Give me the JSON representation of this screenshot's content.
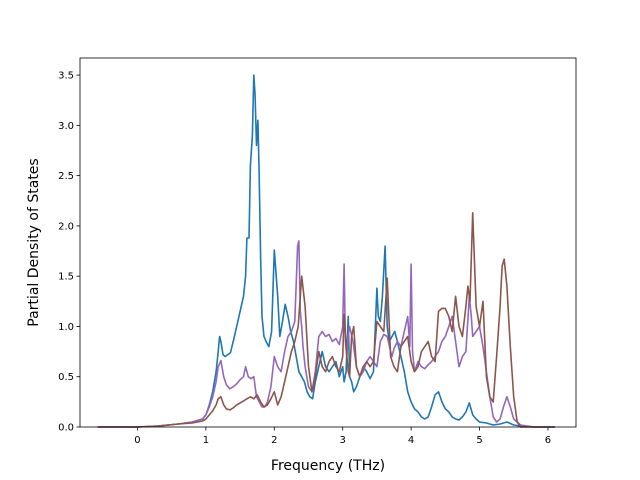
{
  "chart_data": {
    "type": "line",
    "title": "",
    "xlabel": "Frequency (THz)",
    "ylabel": "Partial Density of States",
    "xlim": [
      -0.84,
      6.41
    ],
    "ylim": [
      0,
      3.67
    ],
    "xticks": [
      0,
      1,
      2,
      3,
      4,
      5,
      6
    ],
    "xtick_labels": [
      "0",
      "1",
      "2",
      "3",
      "4",
      "5",
      "6"
    ],
    "yticks": [
      0.0,
      0.5,
      1.0,
      1.5,
      2.0,
      2.5,
      3.0,
      3.5
    ],
    "ytick_labels": [
      "0.0",
      "0.5",
      "1.0",
      "1.5",
      "2.0",
      "2.5",
      "3.0",
      "3.5"
    ],
    "grid": false,
    "legend": "none",
    "series": [
      {
        "color": "#1f77b4",
        "x": [
          -0.58,
          0.0,
          0.3,
          0.6,
          0.8,
          0.95,
          1.0,
          1.05,
          1.1,
          1.15,
          1.18,
          1.2,
          1.22,
          1.25,
          1.28,
          1.32,
          1.36,
          1.4,
          1.45,
          1.5,
          1.55,
          1.58,
          1.6,
          1.63,
          1.65,
          1.68,
          1.7,
          1.72,
          1.74,
          1.76,
          1.78,
          1.8,
          1.82,
          1.85,
          1.88,
          1.92,
          1.96,
          2.0,
          2.05,
          2.08,
          2.12,
          2.16,
          2.2,
          2.24,
          2.28,
          2.32,
          2.36,
          2.4,
          2.44,
          2.48,
          2.52,
          2.56,
          2.6,
          2.65,
          2.7,
          2.75,
          2.8,
          2.85,
          2.9,
          2.95,
          3.0,
          3.02,
          3.05,
          3.08,
          3.1,
          3.13,
          3.16,
          3.2,
          3.25,
          3.3,
          3.35,
          3.4,
          3.45,
          3.5,
          3.52,
          3.55,
          3.58,
          3.62,
          3.65,
          3.68,
          3.72,
          3.76,
          3.8,
          3.85,
          3.9,
          3.95,
          4.0,
          4.05,
          4.1,
          4.15,
          4.2,
          4.25,
          4.3,
          4.35,
          4.4,
          4.45,
          4.5,
          4.55,
          4.6,
          4.65,
          4.7,
          4.75,
          4.8,
          4.85,
          4.9,
          4.95,
          5.0,
          5.1,
          5.2,
          5.3,
          5.4,
          5.5,
          5.6,
          5.8,
          6.0,
          6.1
        ],
        "values": [
          0.0,
          0.0,
          0.01,
          0.03,
          0.05,
          0.08,
          0.12,
          0.22,
          0.35,
          0.55,
          0.75,
          0.9,
          0.85,
          0.72,
          0.7,
          0.72,
          0.74,
          0.85,
          1.0,
          1.15,
          1.3,
          1.5,
          1.88,
          1.88,
          2.6,
          2.9,
          3.5,
          3.3,
          2.8,
          3.05,
          2.5,
          1.7,
          1.1,
          0.9,
          0.85,
          0.8,
          0.95,
          1.76,
          1.3,
          0.9,
          1.05,
          1.22,
          1.1,
          0.95,
          0.85,
          0.7,
          0.55,
          0.5,
          0.45,
          0.35,
          0.3,
          0.28,
          0.45,
          0.6,
          0.75,
          0.6,
          0.55,
          0.6,
          0.65,
          0.5,
          0.6,
          0.45,
          0.55,
          1.1,
          0.5,
          0.45,
          0.35,
          0.4,
          0.5,
          0.6,
          0.55,
          0.48,
          0.55,
          1.38,
          1.1,
          1.05,
          1.3,
          1.8,
          1.0,
          0.85,
          0.9,
          0.95,
          0.85,
          0.7,
          0.55,
          0.35,
          0.25,
          0.18,
          0.15,
          0.1,
          0.08,
          0.1,
          0.2,
          0.32,
          0.35,
          0.25,
          0.18,
          0.15,
          0.1,
          0.08,
          0.07,
          0.1,
          0.15,
          0.24,
          0.12,
          0.08,
          0.05,
          0.04,
          0.02,
          0.03,
          0.05,
          0.02,
          0.01,
          0.0,
          0.0,
          0.0
        ]
      },
      {
        "color": "#9467bd",
        "x": [
          -0.58,
          0.0,
          0.3,
          0.6,
          0.8,
          0.95,
          1.0,
          1.05,
          1.1,
          1.15,
          1.18,
          1.22,
          1.26,
          1.3,
          1.35,
          1.4,
          1.45,
          1.5,
          1.55,
          1.58,
          1.62,
          1.66,
          1.7,
          1.74,
          1.78,
          1.82,
          1.86,
          1.9,
          1.95,
          2.0,
          2.05,
          2.1,
          2.15,
          2.2,
          2.25,
          2.3,
          2.34,
          2.36,
          2.38,
          2.4,
          2.42,
          2.45,
          2.5,
          2.55,
          2.6,
          2.65,
          2.7,
          2.75,
          2.8,
          2.85,
          2.9,
          2.95,
          3.0,
          3.02,
          3.04,
          3.06,
          3.08,
          3.1,
          3.15,
          3.2,
          3.25,
          3.3,
          3.35,
          3.4,
          3.45,
          3.5,
          3.55,
          3.6,
          3.65,
          3.7,
          3.72,
          3.75,
          3.8,
          3.85,
          3.9,
          3.95,
          3.98,
          4.0,
          4.02,
          4.05,
          4.1,
          4.15,
          4.2,
          4.25,
          4.3,
          4.35,
          4.4,
          4.45,
          4.5,
          4.55,
          4.6,
          4.65,
          4.7,
          4.75,
          4.8,
          4.85,
          4.88,
          4.9,
          4.95,
          5.0,
          5.05,
          5.1,
          5.15,
          5.2,
          5.25,
          5.3,
          5.35,
          5.4,
          5.45,
          5.5,
          5.6,
          5.8,
          6.0,
          6.1
        ],
        "values": [
          0.0,
          0.0,
          0.01,
          0.03,
          0.05,
          0.08,
          0.12,
          0.2,
          0.3,
          0.45,
          0.6,
          0.66,
          0.5,
          0.42,
          0.38,
          0.4,
          0.43,
          0.47,
          0.5,
          0.6,
          0.5,
          0.48,
          0.5,
          0.3,
          0.25,
          0.2,
          0.2,
          0.25,
          0.4,
          0.7,
          0.6,
          0.55,
          0.75,
          0.9,
          0.95,
          1.05,
          1.8,
          1.85,
          1.15,
          1.0,
          0.8,
          0.6,
          0.4,
          0.35,
          0.55,
          0.9,
          0.95,
          0.9,
          0.92,
          0.85,
          0.88,
          0.82,
          1.0,
          1.62,
          0.85,
          0.7,
          0.9,
          1.0,
          0.85,
          0.6,
          0.5,
          0.55,
          0.65,
          0.7,
          0.65,
          0.6,
          0.85,
          0.92,
          0.9,
          0.75,
          0.7,
          0.78,
          0.85,
          0.8,
          0.95,
          1.1,
          0.8,
          1.62,
          0.75,
          0.55,
          0.65,
          0.6,
          0.58,
          0.62,
          0.65,
          0.7,
          0.75,
          0.85,
          0.9,
          1.0,
          1.1,
          0.85,
          0.6,
          0.7,
          0.75,
          1.3,
          1.1,
          0.9,
          0.95,
          1.0,
          0.8,
          0.55,
          0.3,
          0.1,
          0.05,
          0.08,
          0.2,
          0.3,
          0.2,
          0.08,
          0.02,
          0.0,
          0.0,
          0.0
        ]
      },
      {
        "color": "#8c564b",
        "x": [
          -0.58,
          0.0,
          0.3,
          0.6,
          0.8,
          0.95,
          1.0,
          1.05,
          1.1,
          1.15,
          1.18,
          1.22,
          1.26,
          1.3,
          1.35,
          1.4,
          1.45,
          1.5,
          1.55,
          1.6,
          1.65,
          1.7,
          1.75,
          1.8,
          1.85,
          1.9,
          1.95,
          2.0,
          2.05,
          2.1,
          2.15,
          2.2,
          2.25,
          2.3,
          2.35,
          2.4,
          2.45,
          2.5,
          2.55,
          2.6,
          2.65,
          2.7,
          2.75,
          2.8,
          2.85,
          2.9,
          2.95,
          3.0,
          3.02,
          3.05,
          3.08,
          3.1,
          3.13,
          3.16,
          3.2,
          3.25,
          3.3,
          3.35,
          3.4,
          3.45,
          3.5,
          3.55,
          3.6,
          3.65,
          3.7,
          3.75,
          3.8,
          3.85,
          3.9,
          3.95,
          4.0,
          4.05,
          4.1,
          4.15,
          4.2,
          4.25,
          4.3,
          4.35,
          4.4,
          4.45,
          4.5,
          4.55,
          4.6,
          4.65,
          4.7,
          4.75,
          4.8,
          4.83,
          4.86,
          4.9,
          4.95,
          5.0,
          5.05,
          5.1,
          5.15,
          5.2,
          5.25,
          5.3,
          5.33,
          5.36,
          5.4,
          5.45,
          5.5,
          5.55,
          5.6,
          5.8,
          6.0,
          6.1
        ],
        "values": [
          0.0,
          0.0,
          0.01,
          0.03,
          0.04,
          0.06,
          0.08,
          0.12,
          0.16,
          0.22,
          0.28,
          0.3,
          0.22,
          0.18,
          0.17,
          0.19,
          0.22,
          0.24,
          0.26,
          0.28,
          0.3,
          0.28,
          0.32,
          0.25,
          0.2,
          0.22,
          0.28,
          0.35,
          0.22,
          0.3,
          0.45,
          0.6,
          0.75,
          0.85,
          1.0,
          1.5,
          1.2,
          0.6,
          0.35,
          0.5,
          0.75,
          0.6,
          0.55,
          0.65,
          0.7,
          0.6,
          0.55,
          0.7,
          1.12,
          0.8,
          0.55,
          0.5,
          0.9,
          1.0,
          0.6,
          0.5,
          0.6,
          0.65,
          0.6,
          0.65,
          1.05,
          1.0,
          0.95,
          1.48,
          0.7,
          0.6,
          0.55,
          0.8,
          0.85,
          0.9,
          0.65,
          0.55,
          0.6,
          0.75,
          0.8,
          0.85,
          0.7,
          0.65,
          1.15,
          1.18,
          1.18,
          1.1,
          0.95,
          1.3,
          1.0,
          0.9,
          1.2,
          1.4,
          1.25,
          2.13,
          1.2,
          1.0,
          1.25,
          0.5,
          0.3,
          0.25,
          0.7,
          1.2,
          1.6,
          1.67,
          1.4,
          0.8,
          0.3,
          0.05,
          0.0,
          0.0,
          0.0,
          0.0
        ]
      }
    ]
  }
}
